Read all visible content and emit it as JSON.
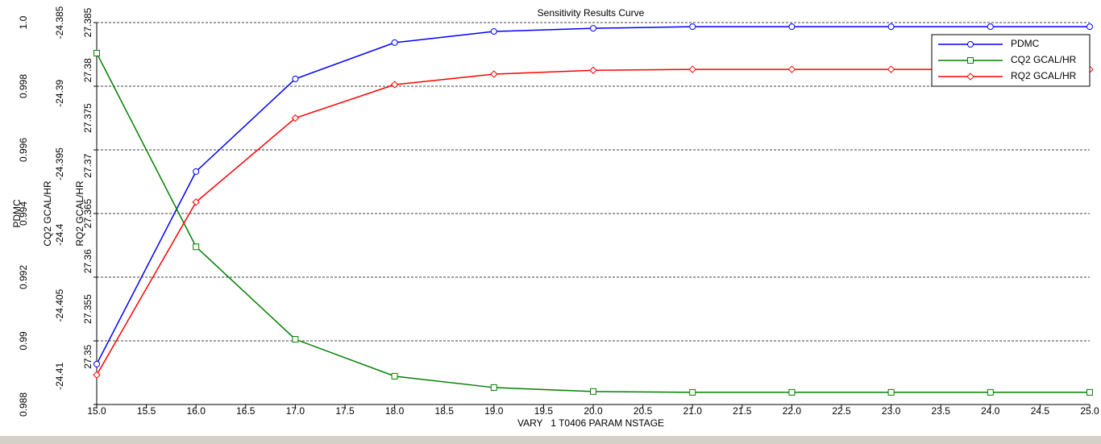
{
  "chart_data": {
    "type": "line",
    "title": "Sensitivity Results Curve",
    "x_label": "VARY   1 T0406 PARAM NSTAGE",
    "x": [
      15,
      16,
      17,
      18,
      19,
      20,
      21,
      22,
      23,
      24,
      25
    ],
    "xlim": [
      15,
      25
    ],
    "xticks": [
      {
        "value": 15,
        "label": "15.0"
      },
      {
        "value": 15.5,
        "label": "15.5"
      },
      {
        "value": 16,
        "label": "16.0"
      },
      {
        "value": 16.5,
        "label": "16.5"
      },
      {
        "value": 17,
        "label": "17.0"
      },
      {
        "value": 17.5,
        "label": "17.5"
      },
      {
        "value": 18,
        "label": "18.0"
      },
      {
        "value": 18.5,
        "label": "18.5"
      },
      {
        "value": 19,
        "label": "19.0"
      },
      {
        "value": 19.5,
        "label": "19.5"
      },
      {
        "value": 20,
        "label": "20.0"
      },
      {
        "value": 20.5,
        "label": "20.5"
      },
      {
        "value": 21,
        "label": "21.0"
      },
      {
        "value": 21.5,
        "label": "21.5"
      },
      {
        "value": 22,
        "label": "22.0"
      },
      {
        "value": 22.5,
        "label": "22.5"
      },
      {
        "value": 23,
        "label": "23.0"
      },
      {
        "value": 23.5,
        "label": "23.5"
      },
      {
        "value": 24,
        "label": "24.0"
      },
      {
        "value": 24.5,
        "label": "24.5"
      },
      {
        "value": 25,
        "label": "25.0"
      }
    ],
    "y_label": "PDMC",
    "ylim": [
      0.988,
      1.0
    ],
    "yticks": [
      0.988,
      0.99,
      0.992,
      0.994,
      0.996,
      0.998,
      {
        "value": 1.0,
        "label": "1.0"
      }
    ],
    "y2_label": "CQ2 GCAL/HR",
    "y2lim": [
      -24.412,
      -24.385
    ],
    "y2ticks": [
      -24.41,
      -24.405,
      -24.4,
      -24.395,
      -24.39,
      -24.385
    ],
    "y3_label": "RQ2 GCAL/HR",
    "y3lim": [
      27.345,
      27.385
    ],
    "y3ticks": [
      27.35,
      27.355,
      27.36,
      27.365,
      27.37,
      27.375,
      27.38,
      27.385
    ],
    "grid": true,
    "legend": "top-right",
    "series": [
      {
        "name": "PDMC",
        "color": "#0000ff",
        "marker": "circle",
        "axis": "y",
        "values": [
          0.98927,
          0.99532,
          0.99823,
          0.99937,
          0.99972,
          0.99982,
          0.99987,
          0.99987,
          0.99987,
          0.99987,
          0.99987
        ]
      },
      {
        "name": "CQ2 GCAL/HR",
        "color": "#008000",
        "marker": "square",
        "axis": "y2",
        "values": [
          -24.38716,
          -24.40085,
          -24.40739,
          -24.41,
          -24.4108,
          -24.41108,
          -24.41114,
          -24.41114,
          -24.41114,
          -24.41114,
          -24.41114
        ]
      },
      {
        "name": "RQ2 GCAL/HR",
        "color": "#ff0000",
        "marker": "diamond",
        "axis": "y3",
        "values": [
          27.3481,
          27.3662,
          27.375,
          27.3785,
          27.3796,
          27.38,
          27.3801,
          27.3801,
          27.3801,
          27.3801,
          27.3801
        ]
      }
    ]
  }
}
